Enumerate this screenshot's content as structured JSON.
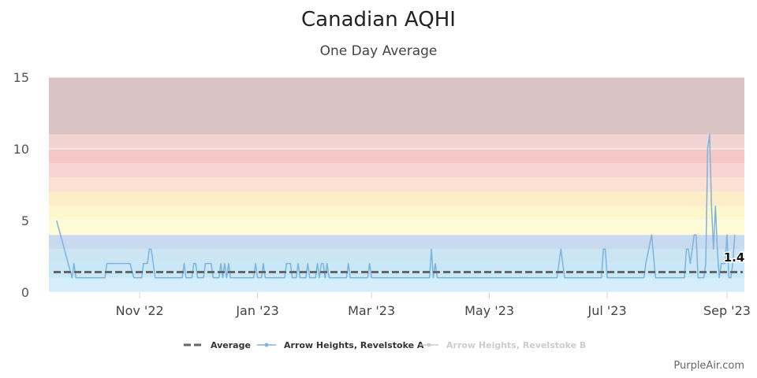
{
  "chart_data": {
    "type": "line",
    "title": "Canadian AQHI",
    "subtitle": "One Day Average",
    "xlabel": "",
    "ylabel": "",
    "ylim": [
      0,
      15
    ],
    "yticks": [
      0,
      5,
      10,
      15
    ],
    "xlim": [
      "2022-09-15",
      "2023-09-10"
    ],
    "xticks": [
      {
        "date": "2022-11-01",
        "label": "Nov '22"
      },
      {
        "date": "2023-01-01",
        "label": "Jan '23"
      },
      {
        "date": "2023-03-01",
        "label": "Mar '23"
      },
      {
        "date": "2023-05-01",
        "label": "May '23"
      },
      {
        "date": "2023-07-01",
        "label": "Jul '23"
      },
      {
        "date": "2023-09-01",
        "label": "Sep '23"
      }
    ],
    "grid": true,
    "legend_position": "bottom-center",
    "bands": [
      {
        "from": 0,
        "to": 1,
        "color": "#d4eefb"
      },
      {
        "from": 1,
        "to": 2,
        "color": "#c8e7f7"
      },
      {
        "from": 2,
        "to": 3,
        "color": "#cbe5f3"
      },
      {
        "from": 3,
        "to": 4,
        "color": "#c9d9ee"
      },
      {
        "from": 4,
        "to": 5,
        "color": "#fefbd7"
      },
      {
        "from": 5,
        "to": 6,
        "color": "#fdf7cc"
      },
      {
        "from": 6,
        "to": 7,
        "color": "#fdedc9"
      },
      {
        "from": 7,
        "to": 8,
        "color": "#fbe1d3"
      },
      {
        "from": 8,
        "to": 9,
        "color": "#f8d4d2"
      },
      {
        "from": 9,
        "to": 10,
        "color": "#f5c7c6"
      },
      {
        "from": 10,
        "to": 11,
        "color": "#f1d3d2"
      },
      {
        "from": 11,
        "to": 15,
        "color": "#d9c3c3"
      }
    ],
    "average": {
      "name": "Average",
      "value": 1.4,
      "label": "1.4",
      "color": "#666666"
    },
    "series": [
      {
        "name": "Arrow Heights, Revelstoke A",
        "color": "#7db4dd",
        "visible": true,
        "points": [
          [
            "2022-09-19",
            5
          ],
          [
            "2022-09-25",
            2
          ],
          [
            "2022-09-27",
            1
          ],
          [
            "2022-09-28",
            2
          ],
          [
            "2022-09-29",
            1
          ],
          [
            "2022-10-14",
            1
          ],
          [
            "2022-10-15",
            2
          ],
          [
            "2022-10-27",
            2
          ],
          [
            "2022-10-29",
            1
          ],
          [
            "2022-11-02",
            1
          ],
          [
            "2022-11-03",
            2
          ],
          [
            "2022-11-05",
            2
          ],
          [
            "2022-11-06",
            3
          ],
          [
            "2022-11-07",
            3
          ],
          [
            "2022-11-09",
            1
          ],
          [
            "2022-11-23",
            1
          ],
          [
            "2022-11-24",
            2
          ],
          [
            "2022-11-25",
            1
          ],
          [
            "2022-11-28",
            1
          ],
          [
            "2022-11-29",
            2
          ],
          [
            "2022-11-30",
            2
          ],
          [
            "2022-12-01",
            1
          ],
          [
            "2022-12-04",
            1
          ],
          [
            "2022-12-05",
            2
          ],
          [
            "2022-12-08",
            2
          ],
          [
            "2022-12-09",
            1
          ],
          [
            "2022-12-12",
            1
          ],
          [
            "2022-12-13",
            2
          ],
          [
            "2022-12-14",
            1
          ],
          [
            "2022-12-15",
            2
          ],
          [
            "2022-12-16",
            1
          ],
          [
            "2022-12-17",
            2
          ],
          [
            "2022-12-18",
            1
          ],
          [
            "2022-12-30",
            1
          ],
          [
            "2022-12-31",
            2
          ],
          [
            "2023-01-01",
            1
          ],
          [
            "2023-01-03",
            1
          ],
          [
            "2023-01-04",
            2
          ],
          [
            "2023-01-05",
            1
          ],
          [
            "2023-01-15",
            1
          ],
          [
            "2023-01-16",
            2
          ],
          [
            "2023-01-18",
            2
          ],
          [
            "2023-01-19",
            1
          ],
          [
            "2023-01-21",
            1
          ],
          [
            "2023-01-22",
            2
          ],
          [
            "2023-01-23",
            1
          ],
          [
            "2023-01-26",
            1
          ],
          [
            "2023-01-27",
            2
          ],
          [
            "2023-01-28",
            1
          ],
          [
            "2023-01-31",
            1
          ],
          [
            "2023-02-01",
            2
          ],
          [
            "2023-02-02",
            1
          ],
          [
            "2023-02-03",
            2
          ],
          [
            "2023-02-04",
            2
          ],
          [
            "2023-02-05",
            1
          ],
          [
            "2023-02-06",
            2
          ],
          [
            "2023-02-07",
            1
          ],
          [
            "2023-02-16",
            1
          ],
          [
            "2023-02-17",
            2
          ],
          [
            "2023-02-18",
            1
          ],
          [
            "2023-02-27",
            1
          ],
          [
            "2023-02-28",
            2
          ],
          [
            "2023-03-01",
            1
          ],
          [
            "2023-03-31",
            1
          ],
          [
            "2023-04-01",
            3
          ],
          [
            "2023-04-02",
            1
          ],
          [
            "2023-04-03",
            2
          ],
          [
            "2023-04-04",
            1
          ],
          [
            "2023-06-05",
            1
          ],
          [
            "2023-06-07",
            3
          ],
          [
            "2023-06-09",
            1
          ],
          [
            "2023-06-28",
            1
          ],
          [
            "2023-06-29",
            3
          ],
          [
            "2023-06-30",
            3
          ],
          [
            "2023-07-01",
            1
          ],
          [
            "2023-07-20",
            1
          ],
          [
            "2023-07-21",
            2
          ],
          [
            "2023-07-24",
            4
          ],
          [
            "2023-07-26",
            1
          ],
          [
            "2023-08-10",
            1
          ],
          [
            "2023-08-11",
            3
          ],
          [
            "2023-08-12",
            3
          ],
          [
            "2023-08-13",
            2
          ],
          [
            "2023-08-14",
            3
          ],
          [
            "2023-08-15",
            4
          ],
          [
            "2023-08-16",
            4
          ],
          [
            "2023-08-17",
            1
          ],
          [
            "2023-08-20",
            1
          ],
          [
            "2023-08-21",
            2
          ],
          [
            "2023-08-22",
            10
          ],
          [
            "2023-08-23",
            11
          ],
          [
            "2023-08-24",
            6
          ],
          [
            "2023-08-25",
            3
          ],
          [
            "2023-08-26",
            6
          ],
          [
            "2023-08-27",
            3
          ],
          [
            "2023-08-28",
            1
          ],
          [
            "2023-08-29",
            2
          ],
          [
            "2023-08-30",
            2
          ],
          [
            "2023-08-31",
            2
          ],
          [
            "2023-09-01",
            4
          ],
          [
            "2023-09-02",
            1
          ],
          [
            "2023-09-03",
            1
          ],
          [
            "2023-09-04",
            2
          ],
          [
            "2023-09-05",
            4
          ]
        ]
      },
      {
        "name": "Arrow Heights, Revelstoke B",
        "color": "#cccccc",
        "visible": false,
        "points": []
      }
    ]
  },
  "credit": "PurpleAir.com"
}
